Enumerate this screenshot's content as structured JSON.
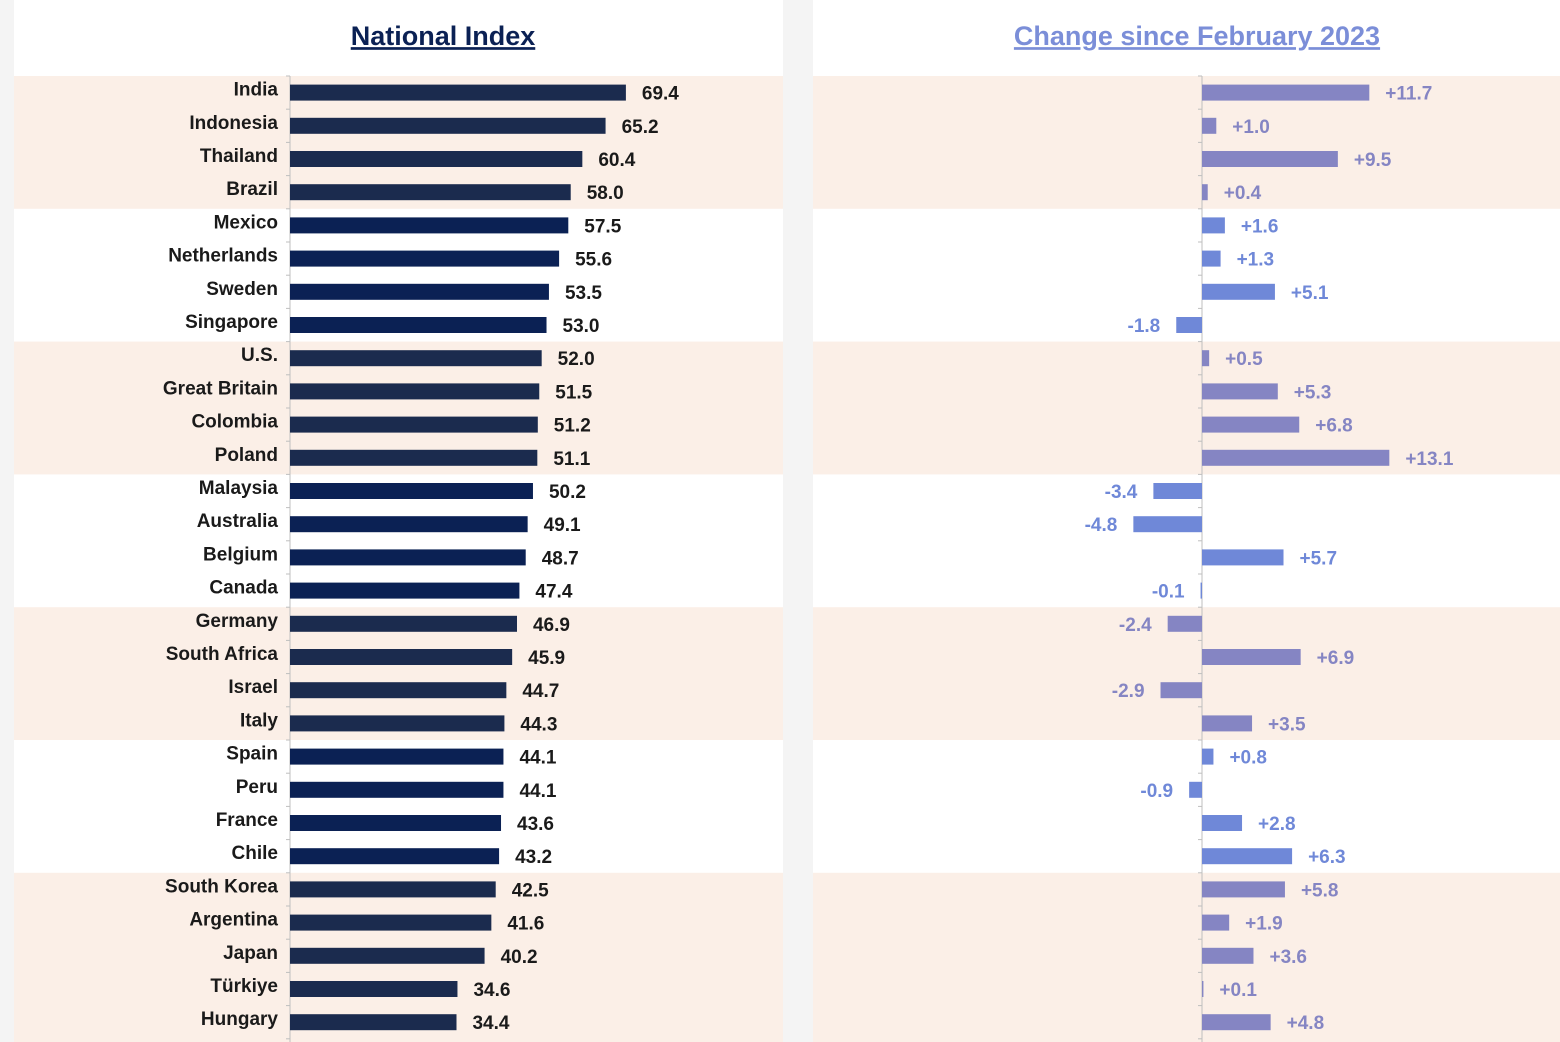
{
  "chart_data": [
    {
      "type": "hbar",
      "title": "National Index",
      "categories": [
        "India",
        "Indonesia",
        "Thailand",
        "Brazil",
        "Mexico",
        "Netherlands",
        "Sweden",
        "Singapore",
        "U.S.",
        "Great Britain",
        "Colombia",
        "Poland",
        "Malaysia",
        "Australia",
        "Belgium",
        "Canada",
        "Germany",
        "South Africa",
        "Israel",
        "Italy",
        "Spain",
        "Peru",
        "France",
        "Chile",
        "South Korea",
        "Argentina",
        "Japan",
        "Türkiye",
        "Hungary"
      ],
      "values": [
        69.4,
        65.2,
        60.4,
        58.0,
        57.5,
        55.6,
        53.5,
        53.0,
        52.0,
        51.5,
        51.2,
        51.1,
        50.2,
        49.1,
        48.7,
        47.4,
        46.9,
        45.9,
        44.7,
        44.3,
        44.1,
        44.1,
        43.6,
        43.2,
        42.5,
        41.6,
        40.2,
        34.6,
        34.4
      ],
      "value_labels": [
        "69.4",
        "65.2",
        "60.4",
        "58.0",
        "57.5",
        "55.6",
        "53.5",
        "53.0",
        "52.0",
        "51.5",
        "51.2",
        "51.1",
        "50.2",
        "49.1",
        "48.7",
        "47.4",
        "46.9",
        "45.9",
        "44.7",
        "44.3",
        "44.1",
        "44.1",
        "43.6",
        "43.2",
        "42.5",
        "41.6",
        "40.2",
        "34.6",
        "34.4"
      ],
      "colors": [
        "#1b2b4e",
        "#0b2154"
      ],
      "title_color": "#0b2154",
      "label_color": "#1a1a1a"
    },
    {
      "type": "hbar",
      "title": "Change since February 2023",
      "values": [
        11.7,
        1.0,
        9.5,
        0.4,
        1.6,
        1.3,
        5.1,
        -1.8,
        0.5,
        5.3,
        6.8,
        13.1,
        -3.4,
        -4.8,
        5.7,
        -0.1,
        -2.4,
        6.9,
        -2.9,
        3.5,
        0.8,
        -0.9,
        2.8,
        6.3,
        5.8,
        1.9,
        3.6,
        0.1,
        4.8
      ],
      "value_labels": [
        "+11.7",
        "+1.0",
        "+9.5",
        "+0.4",
        "+1.6",
        "+1.3",
        "+5.1",
        "-1.8",
        "+0.5",
        "+5.3",
        "+6.8",
        "+13.1",
        "-3.4",
        "-4.8",
        "+5.7",
        "-0.1",
        "-2.4",
        "+6.9",
        "-2.9",
        "+3.5",
        "+0.8",
        "-0.9",
        "+2.8",
        "+6.3",
        "+5.8",
        "+1.9",
        "+3.6",
        "+0.1",
        "+4.8"
      ],
      "colors": [
        "#8585c3",
        "#6f88d8"
      ],
      "title_color": "#7b8ed8"
    }
  ]
}
